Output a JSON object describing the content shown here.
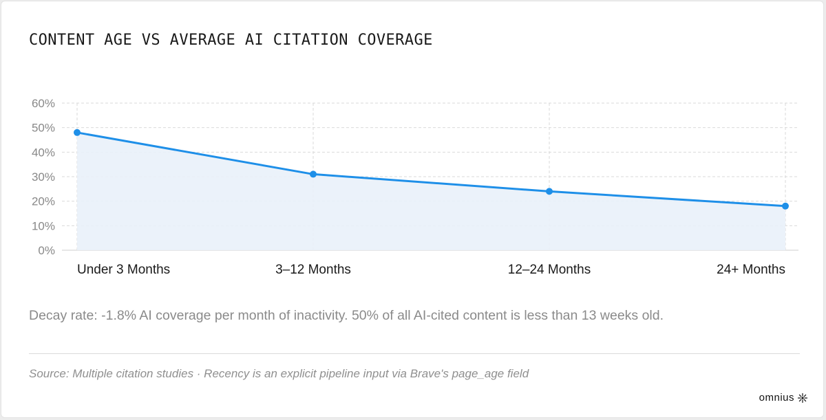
{
  "title": "CONTENT AGE VS AVERAGE AI CITATION COVERAGE",
  "note": "Decay rate: -1.8% AI coverage per month of inactivity. 50% of all AI-cited content is less than 13 weeks old.",
  "source": "Source: Multiple citation studies · Recency is an explicit pipeline input via Brave's page_age field",
  "brand": {
    "name": "omnius",
    "icon": "sunburst-logo-icon"
  },
  "colors": {
    "line": "#1e8fe8",
    "fill": "#e9f1fa",
    "grid": "#d9d9d9",
    "axis_text": "#888888",
    "category_text": "#1a1a1a"
  },
  "chart_data": {
    "type": "line",
    "categories": [
      "Under 3 Months",
      "3–12 Months",
      "12–24 Months",
      "24+ Months"
    ],
    "values": [
      48,
      31,
      24,
      18
    ],
    "yticks": [
      "0%",
      "10%",
      "20%",
      "30%",
      "40%",
      "50%",
      "60%"
    ],
    "ylim": [
      0,
      60
    ],
    "grid": true,
    "area_fill": true
  }
}
